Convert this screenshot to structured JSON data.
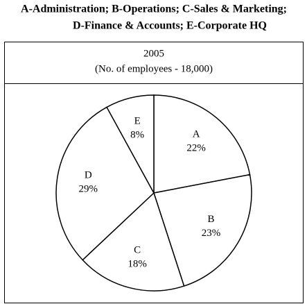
{
  "chart_data": {
    "type": "pie",
    "title": [
      "A-Administration; B-Operations; C-Sales & Marketing;",
      "D-Finance & Accounts; E-Corporate HQ"
    ],
    "subtitle": [
      "2005",
      "(No. of employees - 18,000)"
    ],
    "categories": [
      "A",
      "B",
      "C",
      "D",
      "E"
    ],
    "values": [
      22,
      23,
      18,
      29,
      8
    ],
    "value_labels": [
      "22%",
      "23%",
      "18%",
      "29%",
      "8%"
    ],
    "color": "#ffffff"
  }
}
